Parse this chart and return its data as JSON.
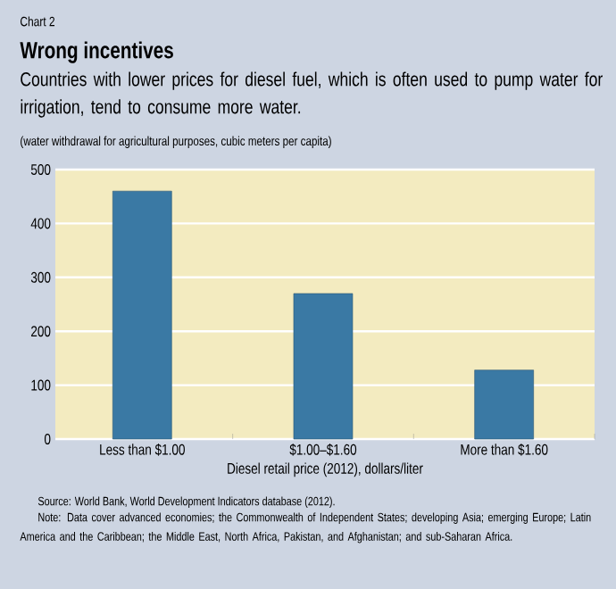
{
  "chart_data": {
    "type": "bar",
    "title": "Wrong incentives",
    "subtitle": "Countries with lower prices for diesel fuel, which is often used to pump water for irrigation, tend to consume more water.",
    "ylabel": "(water withdrawal for agricultural purposes, cubic meters per capita)",
    "xlabel": "Diesel retail price (2012), dollars/liter",
    "categories": [
      "Less than $1.00",
      "$1.00–$1.60",
      "More than $1.60"
    ],
    "values": [
      460,
      270,
      128
    ],
    "color": "#3a79a4",
    "ylim": [
      0,
      500
    ],
    "yticks": [
      0,
      100,
      200,
      300,
      400,
      500
    ],
    "grid": "y",
    "annotations": [
      "Chart 2",
      "Source: World Bank, World Development Indicators database (2012).",
      "Note: Data cover advanced economies; the Commonwealth of Independent States; developing Asia; emerging Europe; Latin America and the Caribbean; the Middle East, North Africa, Pakistan, and Afghanistan; and sub-Saharan Africa."
    ]
  }
}
